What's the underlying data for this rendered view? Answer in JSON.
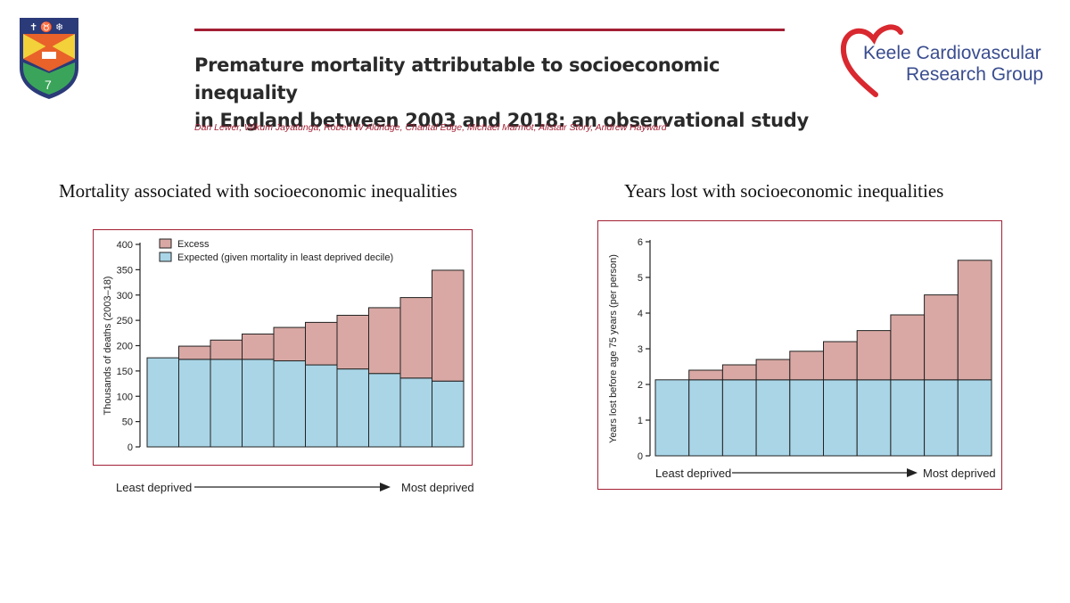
{
  "paper": {
    "title_line1": "Premature mortality attributable to socioeconomic inequality",
    "title_line2": "in England between 2003 and 2018: an observational study",
    "authors": "Dan Lewer, Wikum Jayatunga, Robert W Aldridge, Chantal Edge, Michael Marmot, Alistair Story, Andrew Hayward"
  },
  "logo": {
    "line1": "Keele Cardiovascular",
    "line2": "Research Group",
    "colors": {
      "heart": "#d9282f",
      "text": "#3a4d8f",
      "shield_navy": "#2b3a78",
      "shield_yellow": "#f2d13a",
      "shield_orange": "#e8622a",
      "shield_green": "#3aa55a"
    }
  },
  "colors": {
    "excess": "#d9a8a4",
    "expected": "#a9d5e7",
    "frame": "#a31f34",
    "outline": "#222222"
  },
  "chart_data": [
    {
      "type": "bar",
      "stacked": true,
      "heading": "Mortality associated with socioeconomic inequalities",
      "ylabel": "Thousands of deaths (2003–18)",
      "ylim": [
        0,
        400
      ],
      "yticks": [
        "0",
        "50",
        "100",
        "150",
        "200",
        "250",
        "300",
        "350",
        "400"
      ],
      "x_start_label": "Least deprived",
      "x_end_label": "Most deprived",
      "legend_position": "top-left",
      "series": [
        {
          "name": "Expected (given mortality in least deprived decile)",
          "values": [
            176,
            173,
            173,
            173,
            170,
            162,
            154,
            145,
            136,
            130
          ]
        },
        {
          "name": "Excess",
          "values": [
            0,
            26,
            38,
            50,
            66,
            84,
            106,
            130,
            159,
            219
          ]
        }
      ]
    },
    {
      "type": "bar",
      "stacked": true,
      "heading": "Years lost with socioeconomic inequalities",
      "ylabel": "Years lost before age 75 years (per person)",
      "ylim": [
        0,
        6
      ],
      "yticks": [
        "0",
        "1",
        "2",
        "3",
        "4",
        "5",
        "6"
      ],
      "x_start_label": "Least deprived",
      "x_end_label": "Most deprived",
      "series": [
        {
          "name": "Expected",
          "values": [
            2.13,
            2.13,
            2.13,
            2.13,
            2.13,
            2.13,
            2.13,
            2.13,
            2.13,
            2.13
          ]
        },
        {
          "name": "Excess",
          "values": [
            0,
            0.27,
            0.42,
            0.57,
            0.8,
            1.07,
            1.38,
            1.82,
            2.38,
            3.35
          ]
        }
      ]
    }
  ]
}
